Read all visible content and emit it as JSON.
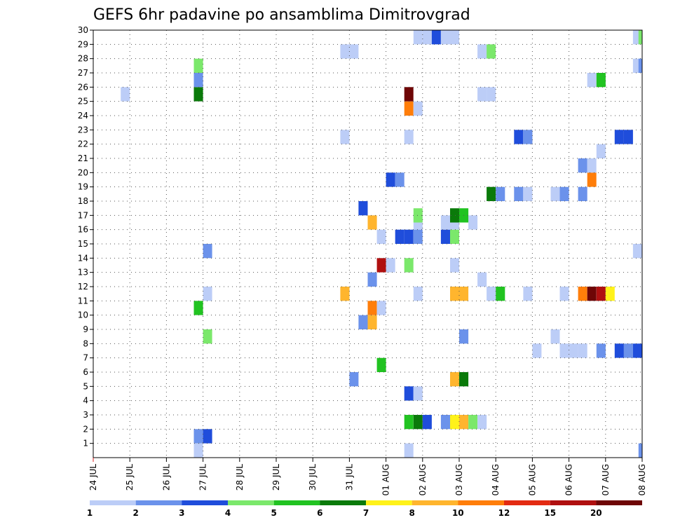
{
  "chart_data": {
    "type": "heatmap",
    "title": "GEFS 6hr padavine po ansamblima Dimitrovgrad",
    "xlabel": "",
    "ylabel": "",
    "x_tick_labels": [
      "24 JUL",
      "25 JUL",
      "26 JUL",
      "27 JUL",
      "28 JUL",
      "29 JUL",
      "30 JUL",
      "31 JUL",
      "01 AUG",
      "02 AUG",
      "03 AUG",
      "04 AUG",
      "05 AUG",
      "06 AUG",
      "07 AUG",
      "08 AUG"
    ],
    "y_tick_labels": [
      "1",
      "2",
      "3",
      "4",
      "5",
      "6",
      "7",
      "8",
      "9",
      "10",
      "11",
      "12",
      "13",
      "14",
      "15",
      "16",
      "17",
      "18",
      "19",
      "20",
      "21",
      "22",
      "23",
      "24",
      "25",
      "26",
      "27",
      "28",
      "29",
      "30"
    ],
    "xlim": [
      0,
      15
    ],
    "ylim": [
      0,
      30
    ],
    "grid": true,
    "cell_width_days": 0.25,
    "colorbar": {
      "levels": [
        "1",
        "2",
        "3",
        "4",
        "5",
        "6",
        "7",
        "8",
        "10",
        "12",
        "15",
        "20"
      ],
      "colors": [
        "#bccdf7",
        "#6b92eb",
        "#1f4ddb",
        "#7be86b",
        "#21c321",
        "#0a7a0a",
        "#fff21a",
        "#ffb52e",
        "#ff7e0a",
        "#e32b12",
        "#b01010",
        "#6e0606"
      ]
    },
    "cells": [
      {
        "x": 2.75,
        "y": 0,
        "v": 1
      },
      {
        "x": 2.75,
        "y": 1,
        "v": 2
      },
      {
        "x": 3.0,
        "y": 1,
        "v": 3
      },
      {
        "x": 8.5,
        "y": 0,
        "v": 1
      },
      {
        "x": 8.5,
        "y": 2,
        "v": 5
      },
      {
        "x": 8.75,
        "y": 2,
        "v": 6
      },
      {
        "x": 9.0,
        "y": 2,
        "v": 3
      },
      {
        "x": 9.5,
        "y": 2,
        "v": 2
      },
      {
        "x": 9.75,
        "y": 2,
        "v": 7
      },
      {
        "x": 10.0,
        "y": 2,
        "v": 8
      },
      {
        "x": 10.25,
        "y": 2,
        "v": 4
      },
      {
        "x": 10.5,
        "y": 2,
        "v": 1
      },
      {
        "x": 8.5,
        "y": 4,
        "v": 3
      },
      {
        "x": 8.75,
        "y": 4,
        "v": 1
      },
      {
        "x": 7.0,
        "y": 5,
        "v": 2
      },
      {
        "x": 9.75,
        "y": 5,
        "v": 8
      },
      {
        "x": 10.0,
        "y": 5,
        "v": 6
      },
      {
        "x": 7.75,
        "y": 6,
        "v": 5
      },
      {
        "x": 12.0,
        "y": 7,
        "v": 1
      },
      {
        "x": 12.75,
        "y": 7,
        "v": 1
      },
      {
        "x": 13.0,
        "y": 7,
        "v": 1
      },
      {
        "x": 13.25,
        "y": 7,
        "v": 1
      },
      {
        "x": 13.75,
        "y": 7,
        "v": 2
      },
      {
        "x": 14.25,
        "y": 7,
        "v": 3
      },
      {
        "x": 14.5,
        "y": 7,
        "v": 2
      },
      {
        "x": 14.75,
        "y": 7,
        "v": 3
      },
      {
        "x": 3.0,
        "y": 8,
        "v": 4
      },
      {
        "x": 10.0,
        "y": 8,
        "v": 2
      },
      {
        "x": 12.5,
        "y": 8,
        "v": 1
      },
      {
        "x": 7.25,
        "y": 9,
        "v": 2
      },
      {
        "x": 7.5,
        "y": 9,
        "v": 8
      },
      {
        "x": 2.75,
        "y": 10,
        "v": 5
      },
      {
        "x": 7.5,
        "y": 10,
        "v": 10
      },
      {
        "x": 7.75,
        "y": 10,
        "v": 1
      },
      {
        "x": 3.0,
        "y": 11,
        "v": 1
      },
      {
        "x": 6.75,
        "y": 11,
        "v": 8
      },
      {
        "x": 8.75,
        "y": 11,
        "v": 1
      },
      {
        "x": 9.75,
        "y": 11,
        "v": 8
      },
      {
        "x": 10.0,
        "y": 11,
        "v": 8
      },
      {
        "x": 10.75,
        "y": 11,
        "v": 1
      },
      {
        "x": 11.0,
        "y": 11,
        "v": 5
      },
      {
        "x": 11.75,
        "y": 11,
        "v": 1
      },
      {
        "x": 12.75,
        "y": 11,
        "v": 1
      },
      {
        "x": 13.25,
        "y": 11,
        "v": 10
      },
      {
        "x": 13.5,
        "y": 11,
        "v": 20
      },
      {
        "x": 13.75,
        "y": 11,
        "v": 15
      },
      {
        "x": 14.0,
        "y": 11,
        "v": 7
      },
      {
        "x": 7.5,
        "y": 12,
        "v": 2
      },
      {
        "x": 10.5,
        "y": 12,
        "v": 1
      },
      {
        "x": 7.75,
        "y": 13,
        "v": 15
      },
      {
        "x": 8.0,
        "y": 13,
        "v": 1
      },
      {
        "x": 8.5,
        "y": 13,
        "v": 4
      },
      {
        "x": 9.75,
        "y": 13,
        "v": 1
      },
      {
        "x": 3.0,
        "y": 14,
        "v": 2
      },
      {
        "x": 14.75,
        "y": 14,
        "v": 1
      },
      {
        "x": 7.75,
        "y": 15,
        "v": 1
      },
      {
        "x": 8.25,
        "y": 15,
        "v": 3
      },
      {
        "x": 8.5,
        "y": 15,
        "v": 3
      },
      {
        "x": 8.75,
        "y": 15,
        "v": 2
      },
      {
        "x": 9.5,
        "y": 15,
        "v": 3
      },
      {
        "x": 9.75,
        "y": 15,
        "v": 4
      },
      {
        "x": 7.5,
        "y": 16,
        "v": 8
      },
      {
        "x": 8.75,
        "y": 16,
        "v": 1
      },
      {
        "x": 9.5,
        "y": 16,
        "v": 1
      },
      {
        "x": 9.75,
        "y": 16,
        "v": 1
      },
      {
        "x": 10.25,
        "y": 16,
        "v": 1
      },
      {
        "x": 8.75,
        "y": 16.5,
        "v": 4
      },
      {
        "x": 9.75,
        "y": 16.5,
        "v": 6
      },
      {
        "x": 10.0,
        "y": 16.5,
        "v": 5
      },
      {
        "x": 7.25,
        "y": 17,
        "v": 3
      },
      {
        "x": 10.75,
        "y": 18,
        "v": 6
      },
      {
        "x": 11.0,
        "y": 18,
        "v": 2
      },
      {
        "x": 11.5,
        "y": 18,
        "v": 2
      },
      {
        "x": 11.75,
        "y": 18,
        "v": 1
      },
      {
        "x": 12.5,
        "y": 18,
        "v": 1
      },
      {
        "x": 12.75,
        "y": 18,
        "v": 2
      },
      {
        "x": 13.25,
        "y": 18,
        "v": 2
      },
      {
        "x": 8.0,
        "y": 19,
        "v": 3
      },
      {
        "x": 8.25,
        "y": 19,
        "v": 2
      },
      {
        "x": 13.5,
        "y": 19,
        "v": 10
      },
      {
        "x": 13.25,
        "y": 20,
        "v": 2
      },
      {
        "x": 13.5,
        "y": 20,
        "v": 1
      },
      {
        "x": 13.75,
        "y": 21,
        "v": 1
      },
      {
        "x": 6.75,
        "y": 22,
        "v": 1
      },
      {
        "x": 8.5,
        "y": 22,
        "v": 1
      },
      {
        "x": 11.5,
        "y": 22,
        "v": 3
      },
      {
        "x": 11.75,
        "y": 22,
        "v": 2
      },
      {
        "x": 14.25,
        "y": 22,
        "v": 3
      },
      {
        "x": 14.5,
        "y": 22,
        "v": 3
      },
      {
        "x": 8.5,
        "y": 24,
        "v": 10
      },
      {
        "x": 8.75,
        "y": 24,
        "v": 1
      },
      {
        "x": 0.75,
        "y": 25,
        "v": 1
      },
      {
        "x": 2.75,
        "y": 25,
        "v": 6
      },
      {
        "x": 8.5,
        "y": 25,
        "v": 20
      },
      {
        "x": 10.5,
        "y": 25,
        "v": 1
      },
      {
        "x": 10.75,
        "y": 25,
        "v": 1
      },
      {
        "x": 2.75,
        "y": 26,
        "v": 2
      },
      {
        "x": 13.5,
        "y": 26,
        "v": 1
      },
      {
        "x": 13.75,
        "y": 26,
        "v": 5
      },
      {
        "x": 2.75,
        "y": 27,
        "v": 4
      },
      {
        "x": 14.75,
        "y": 27,
        "v": 1
      },
      {
        "x": 14.9,
        "y": 27,
        "v": 2
      },
      {
        "x": 6.75,
        "y": 28,
        "v": 1
      },
      {
        "x": 7.0,
        "y": 28,
        "v": 1
      },
      {
        "x": 10.5,
        "y": 28,
        "v": 1
      },
      {
        "x": 10.75,
        "y": 28,
        "v": 4
      },
      {
        "x": 8.75,
        "y": 29,
        "v": 1
      },
      {
        "x": 9.0,
        "y": 29,
        "v": 1
      },
      {
        "x": 9.25,
        "y": 29,
        "v": 3
      },
      {
        "x": 9.5,
        "y": 29,
        "v": 1
      },
      {
        "x": 9.75,
        "y": 29,
        "v": 1
      },
      {
        "x": 14.75,
        "y": 29,
        "v": 1
      },
      {
        "x": 14.9,
        "y": 29,
        "v": 4
      },
      {
        "x": 14.9,
        "y": 0,
        "v": 2
      }
    ]
  }
}
